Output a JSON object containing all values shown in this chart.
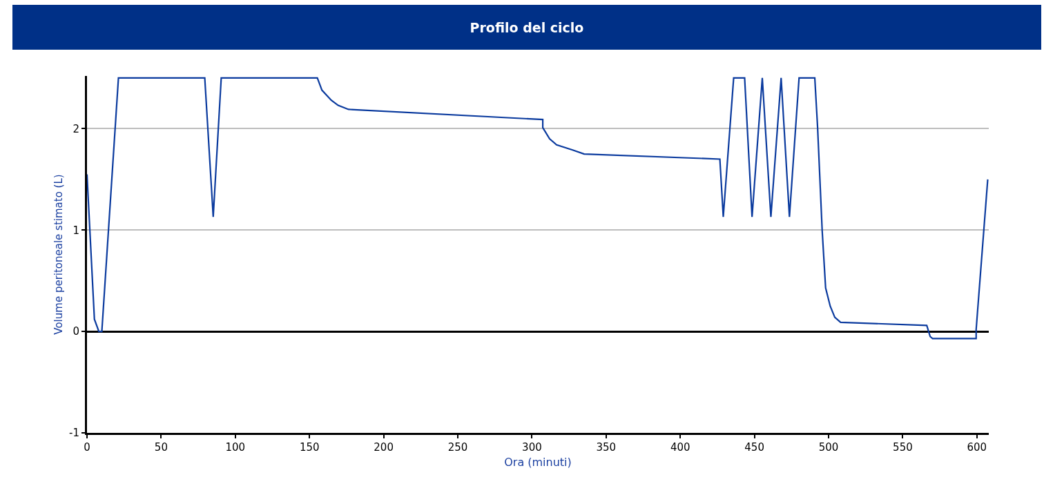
{
  "chart_data": {
    "type": "line",
    "title": "Profilo del ciclo",
    "xlabel": "Ora (minuti)",
    "ylabel": "Volume peritoneale stimato (L)",
    "x": [
      0,
      5,
      8,
      10,
      21.2,
      79.4,
      85.1,
      90.5,
      155.3,
      158.4,
      164.7,
      169.3,
      176.3,
      307.3,
      307.3,
      311.9,
      316.6,
      327.4,
      335.2,
      426.7,
      429,
      436,
      443.4,
      448.4,
      455.3,
      461.1,
      468,
      473.6,
      480.1,
      490.7,
      492.6,
      495.7,
      498,
      501.1,
      504.2,
      508.1,
      566.2,
      568.5,
      570.1,
      599.5,
      599.5,
      607.3
    ],
    "series": [
      {
        "color": "#0a3a9e",
        "values": [
          1.55,
          0.12,
          0.0,
          0.0,
          2.5,
          2.5,
          1.13,
          2.5,
          2.5,
          2.38,
          2.28,
          2.23,
          2.19,
          2.09,
          2.01,
          1.9,
          1.84,
          1.79,
          1.75,
          1.7,
          1.13,
          2.5,
          2.5,
          1.13,
          2.5,
          1.13,
          2.5,
          1.13,
          2.5,
          2.5,
          2.01,
          0.99,
          0.43,
          0.25,
          0.14,
          0.09,
          0.06,
          -0.05,
          -0.07,
          -0.07,
          0.02,
          1.5
        ]
      }
    ],
    "xlim": [
      0,
      608
    ],
    "xticks": [
      0,
      50,
      100,
      150,
      200,
      250,
      300,
      350,
      400,
      450,
      500,
      550,
      600
    ],
    "ylim": [
      -1,
      2.52
    ],
    "yticks": [
      -1,
      0,
      1,
      2
    ],
    "grid": "y",
    "marker": "none",
    "line_style": "solid"
  }
}
